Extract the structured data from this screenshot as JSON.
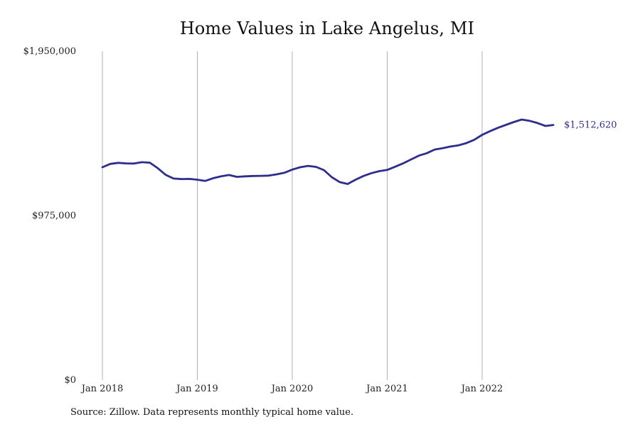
{
  "chart_data": {
    "type": "line",
    "title": "Home Values in Lake Angelus, MI",
    "xlabel": "",
    "ylabel": "",
    "x_ticks": [
      "Jan 2018",
      "Jan 2019",
      "Jan 2020",
      "Jan 2021",
      "Jan 2022"
    ],
    "y_ticks": [
      "$0",
      "$975,000",
      "$1,950,000"
    ],
    "ylim": [
      0,
      1950000
    ],
    "xlim": [
      "2018-01",
      "2022-10"
    ],
    "grid": "vertical",
    "series": [
      {
        "color": "#2e2e8c",
        "x": [
          "2018-01",
          "2018-02",
          "2018-03",
          "2018-04",
          "2018-05",
          "2018-06",
          "2018-07",
          "2018-08",
          "2018-09",
          "2018-10",
          "2018-11",
          "2018-12",
          "2019-01",
          "2019-02",
          "2019-03",
          "2019-04",
          "2019-05",
          "2019-06",
          "2019-07",
          "2019-08",
          "2019-09",
          "2019-10",
          "2019-11",
          "2019-12",
          "2020-01",
          "2020-02",
          "2020-03",
          "2020-04",
          "2020-05",
          "2020-06",
          "2020-07",
          "2020-08",
          "2020-09",
          "2020-10",
          "2020-11",
          "2020-12",
          "2021-01",
          "2021-02",
          "2021-03",
          "2021-04",
          "2021-05",
          "2021-06",
          "2021-07",
          "2021-08",
          "2021-09",
          "2021-10",
          "2021-11",
          "2021-12",
          "2022-01",
          "2022-02",
          "2022-03",
          "2022-04",
          "2022-05",
          "2022-06",
          "2022-07",
          "2022-08",
          "2022-09",
          "2022-10"
        ],
        "values": [
          1262000,
          1282000,
          1288000,
          1285000,
          1284000,
          1292000,
          1289000,
          1256000,
          1217000,
          1195000,
          1192000,
          1193000,
          1188000,
          1181000,
          1197000,
          1208000,
          1216000,
          1205000,
          1208000,
          1210000,
          1211000,
          1212000,
          1220000,
          1229000,
          1248000,
          1262000,
          1270000,
          1264000,
          1245000,
          1203000,
          1174000,
          1163000,
          1188000,
          1210000,
          1227000,
          1239000,
          1246000,
          1265000,
          1285000,
          1308000,
          1331000,
          1345000,
          1367000,
          1375000,
          1385000,
          1392000,
          1405000,
          1425000,
          1454000,
          1476000,
          1496000,
          1513000,
          1530000,
          1545000,
          1537000,
          1524000,
          1507000,
          1512620
        ]
      }
    ],
    "end_label": "$1,512,620"
  },
  "footer": {
    "source": "Source: Zillow. Data represents monthly typical home value."
  },
  "colors": {
    "line": "#2e2e8c",
    "grid": "#b0b0b0",
    "text": "#222222"
  }
}
